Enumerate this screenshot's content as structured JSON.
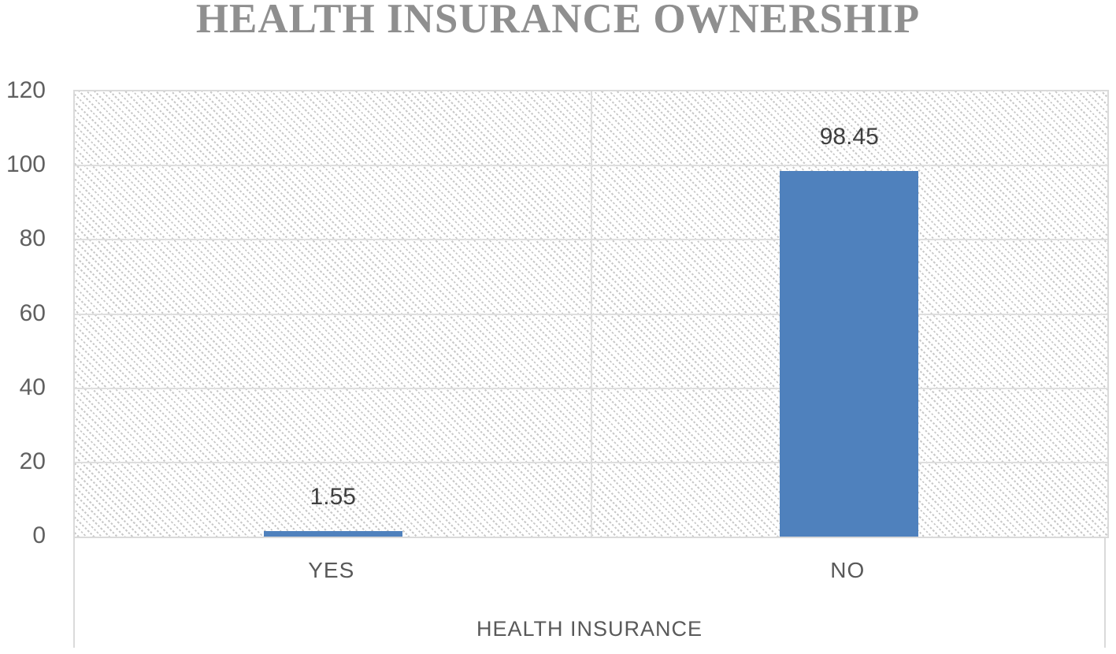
{
  "chart_data": {
    "type": "bar",
    "title": "HEALTH INSURANCE OWNERSHIP",
    "xlabel": "HEALTH INSURANCE",
    "ylabel": "",
    "categories": [
      "YES",
      "NO"
    ],
    "values": [
      1.55,
      98.45
    ],
    "data_labels": [
      "1.55",
      "98.45"
    ],
    "ylim": [
      0,
      120
    ],
    "yticks": [
      0,
      20,
      40,
      60,
      80,
      100,
      120
    ],
    "grid": "horizontal gridlines at each ytick plus one vertical gridline at plot center",
    "legend": "none",
    "bar_color": "#4F81BD",
    "plot_fill": "light diagonal dotted pattern",
    "title_color": "#8f8f8f",
    "axis_text_color": "#595959",
    "data_label_color": "#3f3f3f",
    "gridline_color": "#dedede"
  }
}
